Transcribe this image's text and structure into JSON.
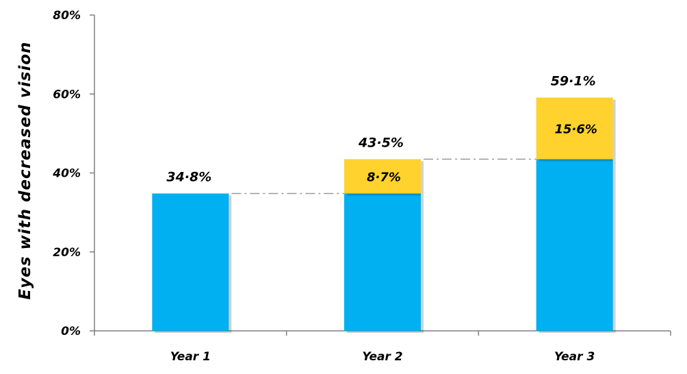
{
  "chart_data": {
    "type": "bar",
    "stacked": true,
    "title": "",
    "xlabel": "",
    "ylabel": "Eyes with decreased vision",
    "ylim": [
      0,
      80
    ],
    "yticks": [
      "0%",
      "20%",
      "40%",
      "60%",
      "80%"
    ],
    "ytick_values": [
      0,
      20,
      40,
      60,
      80
    ],
    "categories": [
      "Year 1",
      "Year 2",
      "Year 3"
    ],
    "series": [
      {
        "values": [
          34.8,
          34.8,
          43.5
        ],
        "color": "#00b0f0"
      },
      {
        "values": [
          0,
          8.7,
          15.6
        ],
        "color": "#ffd22d"
      }
    ],
    "totals": [
      34.8,
      43.5,
      59.1
    ],
    "total_labels": [
      "34·8%",
      "43·5%",
      "59·1%"
    ],
    "increment_labels": [
      "",
      "8·7%",
      "15·6%"
    ],
    "connector_lines": true,
    "grid": false,
    "legend": "none"
  }
}
